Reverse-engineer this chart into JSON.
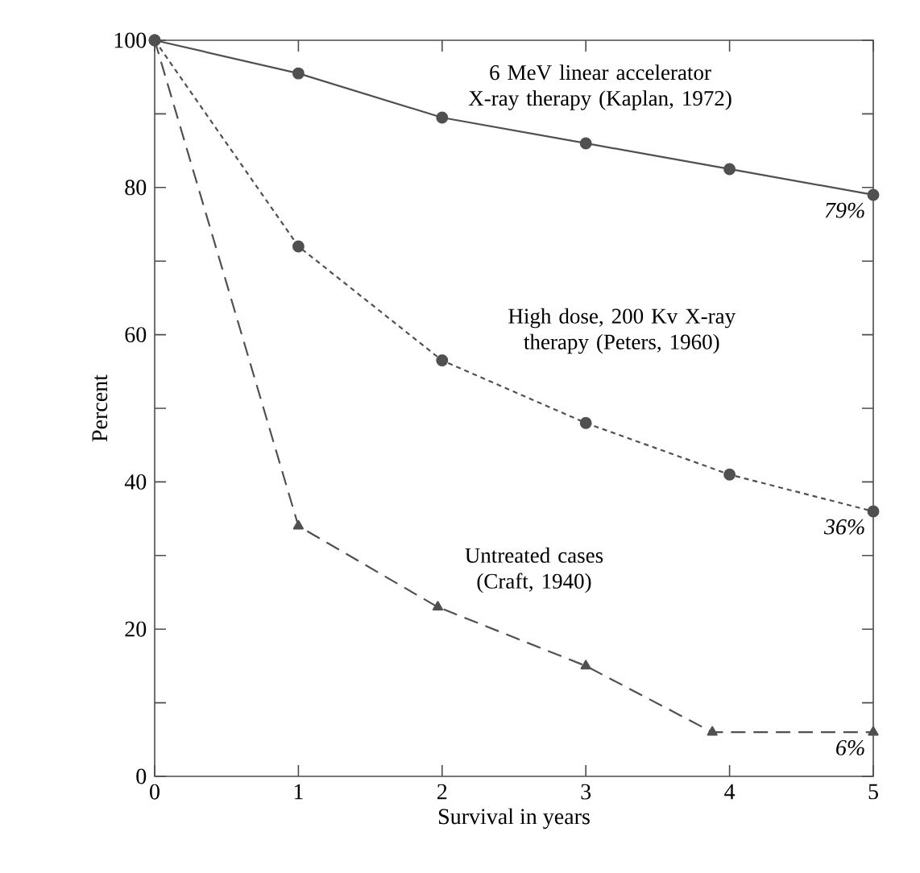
{
  "chart_data": {
    "type": "line",
    "xlabel": "Survival in years",
    "ylabel": "Percent",
    "x": [
      0,
      1,
      2,
      3,
      4,
      5
    ],
    "series": [
      {
        "name": "6 MeV linear accelerator X-ray therapy (Kaplan, 1972)",
        "color": "#505050",
        "marker": "circle",
        "line_style": "solid",
        "values": [
          100,
          95.5,
          89.5,
          86,
          82.5,
          79
        ],
        "value_labels": [
          null,
          null,
          null,
          null,
          null,
          "79%"
        ]
      },
      {
        "name": "High dose, 200 Kv X-ray therapy (Peters, 1960)",
        "color": "#505050",
        "marker": "circle",
        "line_style": "dotted",
        "values": [
          100,
          72,
          56.5,
          48,
          41,
          36
        ],
        "value_labels": [
          null,
          null,
          null,
          null,
          null,
          "36%"
        ]
      },
      {
        "name": "Untreated cases (Craft, 1940)",
        "color": "#505050",
        "marker": "triangle",
        "line_style": "dashed",
        "x": [
          0,
          1,
          1.97,
          3,
          3.88,
          5
        ],
        "values": [
          100,
          34,
          23,
          15,
          6,
          6
        ],
        "value_labels": [
          null,
          null,
          null,
          null,
          null,
          "6%"
        ]
      }
    ],
    "xlim": [
      0,
      5
    ],
    "xticks": [
      0,
      1,
      2,
      3,
      4,
      5
    ],
    "ylim": [
      0,
      100
    ],
    "yticks": [
      0,
      {
        "value": 10,
        "label": null
      },
      20,
      {
        "value": 30,
        "label": null
      },
      40,
      {
        "value": 50,
        "label": null
      },
      60,
      {
        "value": 70,
        "label": null
      },
      80,
      {
        "value": 90,
        "label": null
      },
      100
    ],
    "grid": false
  }
}
